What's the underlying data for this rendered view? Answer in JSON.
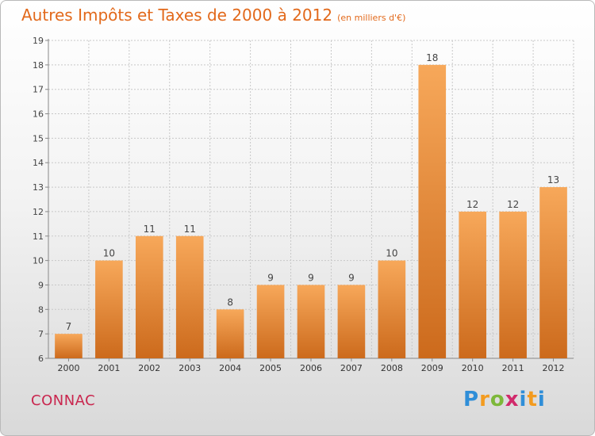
{
  "title": "Autres Impôts et Taxes de 2000 à 2012",
  "unit": "(en milliers d'€)",
  "commune": "CONNAC",
  "logo": {
    "text": "Proxiti"
  },
  "colors": {
    "bar_light": "#f7a85a",
    "bar_dark": "#cc6a1c",
    "title": "#e2691b",
    "commune": "#c9264e",
    "grid": "#c8c8c8"
  },
  "chart_data": {
    "type": "bar",
    "title": "Autres Impôts et Taxes de 2000 à 2012",
    "subtitle": "(en milliers d'€)",
    "categories": [
      "2000",
      "2001",
      "2002",
      "2003",
      "2004",
      "2005",
      "2006",
      "2007",
      "2008",
      "2009",
      "2010",
      "2011",
      "2012"
    ],
    "values": [
      7,
      10,
      11,
      11,
      8,
      9,
      9,
      9,
      10,
      18,
      12,
      12,
      13
    ],
    "ylim": [
      6,
      19
    ],
    "yticks": [
      6,
      7,
      8,
      9,
      10,
      11,
      12,
      13,
      14,
      15,
      16,
      17,
      18,
      19
    ],
    "grid": true,
    "xlabel": "",
    "ylabel": ""
  }
}
